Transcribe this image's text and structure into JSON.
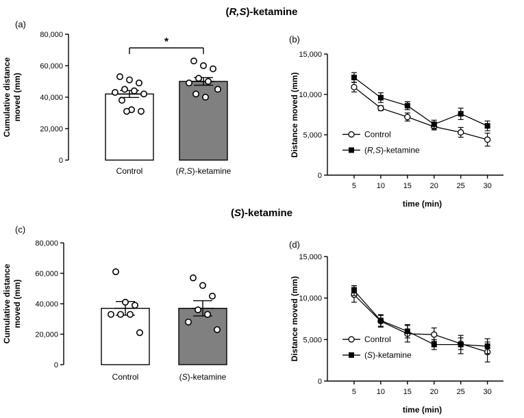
{
  "sections": [
    {
      "title": "(R,S)-ketamine",
      "parts": [
        {
          "t": "(",
          "i": false
        },
        {
          "t": "R,S",
          "i": true
        },
        {
          "t": ")-ketamine",
          "i": false
        }
      ]
    },
    {
      "title": "(S)-ketamine",
      "parts": [
        {
          "t": "(",
          "i": false
        },
        {
          "t": "S",
          "i": true
        },
        {
          "t": ")-ketamine",
          "i": false
        }
      ]
    }
  ],
  "chart_data": [
    {
      "id": "a",
      "panel_label": "(a)",
      "type": "bar",
      "ylabel": [
        "Cumulative distance",
        "moved (mm)"
      ],
      "ylim": [
        0,
        80000
      ],
      "yticks": [
        "0",
        "20,000",
        "40,000",
        "60,000",
        "80,000"
      ],
      "tick_values": [
        0,
        20000,
        40000,
        60000,
        80000
      ],
      "categories": [
        {
          "label": "Control",
          "parts": [
            {
              "t": "Control",
              "i": false
            }
          ]
        },
        {
          "label": "(R,S)-ketamine",
          "parts": [
            {
              "t": "(",
              "i": false
            },
            {
              "t": "R,S",
              "i": true
            },
            {
              "t": ")-ketamine",
              "i": false
            }
          ]
        }
      ],
      "series": [
        {
          "name": "Control",
          "mean": 42000,
          "sem": 2200,
          "fill": "#ffffff",
          "points": [
            53000,
            51000,
            49000,
            45000,
            44000,
            43000,
            42000,
            38000,
            32000,
            31000,
            31000
          ]
        },
        {
          "name": "(R,S)-ketamine",
          "mean": 50000,
          "sem": 2400,
          "fill": "#808080",
          "points": [
            63000,
            60000,
            58000,
            52000,
            50000,
            49000,
            45000,
            42000,
            40000
          ]
        }
      ],
      "significance": "*"
    },
    {
      "id": "b",
      "panel_label": "(b)",
      "type": "line",
      "ylabel": [
        "Distance moved (mm)"
      ],
      "xlabel": "time (min)",
      "ylim": [
        0,
        15000
      ],
      "yticks": [
        "0",
        "5,000",
        "10,000",
        "15,000"
      ],
      "tick_values": [
        0,
        5000,
        10000,
        15000
      ],
      "x": [
        5,
        10,
        15,
        20,
        25,
        30
      ],
      "xticks": [
        "5",
        "10",
        "15",
        "20",
        "25",
        "30"
      ],
      "xlim": [
        0,
        33
      ],
      "series": [
        {
          "name": "Control",
          "parts": [
            {
              "t": "Control",
              "i": false
            }
          ],
          "marker": "open-circle",
          "values": [
            10900,
            8300,
            7200,
            6000,
            5300,
            4400
          ],
          "err": [
            600,
            300,
            500,
            400,
            600,
            800
          ]
        },
        {
          "name": "(R,S)-ketamine",
          "parts": [
            {
              "t": "(",
              "i": false
            },
            {
              "t": "R,S",
              "i": true
            },
            {
              "t": ")-ketamine",
              "i": false
            }
          ],
          "marker": "filled-square",
          "values": [
            12100,
            9600,
            8600,
            6300,
            7600,
            6100
          ],
          "err": [
            600,
            600,
            500,
            500,
            700,
            600
          ]
        }
      ]
    },
    {
      "id": "c",
      "panel_label": "(c)",
      "type": "bar",
      "ylabel": [
        "Cumulative distance",
        "moved (mm)"
      ],
      "ylim": [
        0,
        80000
      ],
      "yticks": [
        "0",
        "20,000",
        "40,000",
        "60,000",
        "80,000"
      ],
      "tick_values": [
        0,
        20000,
        40000,
        60000,
        80000
      ],
      "categories": [
        {
          "label": "Control",
          "parts": [
            {
              "t": "Control",
              "i": false
            }
          ]
        },
        {
          "label": "(S)-ketamine",
          "parts": [
            {
              "t": "(",
              "i": false
            },
            {
              "t": "S",
              "i": true
            },
            {
              "t": ")-ketamine",
              "i": false
            }
          ]
        }
      ],
      "series": [
        {
          "name": "Control",
          "mean": 37000,
          "sem": 4500,
          "fill": "#ffffff",
          "points": [
            61000,
            41000,
            39000,
            33000,
            33000,
            33000,
            21000
          ]
        },
        {
          "name": "(S)-ketamine",
          "mean": 37000,
          "sem": 5000,
          "fill": "#808080",
          "points": [
            57000,
            52000,
            45000,
            36000,
            33000,
            28000,
            23000
          ]
        }
      ]
    },
    {
      "id": "d",
      "panel_label": "(d)",
      "type": "line",
      "ylabel": [
        "Distance moved (mm)"
      ],
      "xlabel": "time (min)",
      "ylim": [
        0,
        15000
      ],
      "yticks": [
        "0",
        "5,000",
        "10,000",
        "15,000"
      ],
      "tick_values": [
        0,
        5000,
        10000,
        15000
      ],
      "x": [
        5,
        10,
        15,
        20,
        25,
        30
      ],
      "xticks": [
        "5",
        "10",
        "15",
        "20",
        "25",
        "30"
      ],
      "xlim": [
        0,
        33
      ],
      "series": [
        {
          "name": "Control",
          "parts": [
            {
              "t": "Control",
              "i": false
            }
          ],
          "marker": "open-circle",
          "values": [
            10400,
            7200,
            5700,
            5600,
            4500,
            3500
          ],
          "err": [
            900,
            700,
            1000,
            800,
            700,
            1200
          ]
        },
        {
          "name": "(S)-ketamine",
          "parts": [
            {
              "t": "(",
              "i": false
            },
            {
              "t": "S",
              "i": true
            },
            {
              "t": ")-ketamine",
              "i": false
            }
          ],
          "marker": "filled-square",
          "values": [
            10900,
            7300,
            6000,
            4400,
            4400,
            4200
          ],
          "err": [
            600,
            700,
            800,
            600,
            1100,
            900
          ]
        }
      ]
    }
  ]
}
